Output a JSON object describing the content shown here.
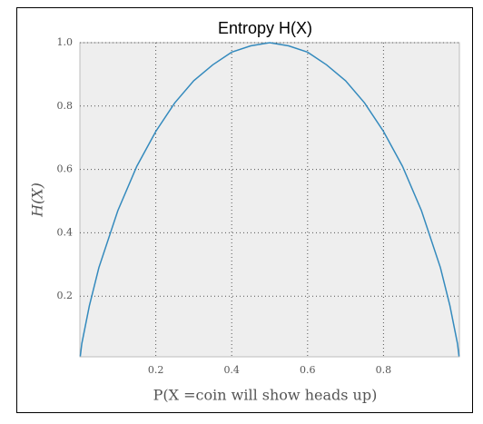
{
  "chart_data": {
    "type": "line",
    "title": "Entropy H(X)",
    "x_label": "P(X =coin will show heads up)",
    "y_label": "H(X)",
    "x": [
      0.001,
      0.005,
      0.01,
      0.025,
      0.05,
      0.1,
      0.15,
      0.2,
      0.25,
      0.3,
      0.35,
      0.4,
      0.45,
      0.5,
      0.55,
      0.6,
      0.65,
      0.7,
      0.75,
      0.8,
      0.85,
      0.9,
      0.95,
      0.975,
      0.99,
      0.995,
      0.999
    ],
    "series": [
      {
        "color": "#348abd",
        "values": [
          0.01,
          0.05,
          0.08,
          0.17,
          0.29,
          0.47,
          0.61,
          0.72,
          0.81,
          0.88,
          0.93,
          0.97,
          0.99,
          1.0,
          0.99,
          0.97,
          0.93,
          0.88,
          0.81,
          0.72,
          0.61,
          0.47,
          0.29,
          0.17,
          0.08,
          0.05,
          0.01
        ]
      }
    ],
    "xlim": [
      0,
      1
    ],
    "ylim": [
      0,
      1
    ],
    "xticks": [
      0.2,
      0.4,
      0.6,
      0.8
    ],
    "yticks": [
      0.2,
      0.4,
      0.6,
      0.8,
      {
        "value": 1,
        "label": "1.0"
      }
    ],
    "grid": true
  }
}
